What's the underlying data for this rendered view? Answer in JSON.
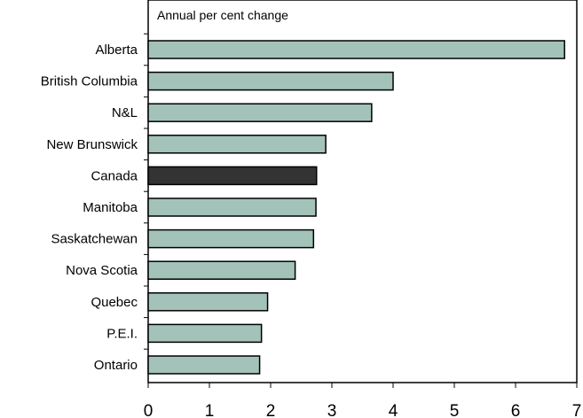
{
  "chart_data": {
    "type": "bar",
    "orientation": "horizontal",
    "title": "Annual per cent change",
    "categories": [
      "Alberta",
      "British Columbia",
      "N&L",
      "New Brunswick",
      "Canada",
      "Manitoba",
      "Saskatchewan",
      "Nova Scotia",
      "Quebec",
      "P.E.I.",
      "Ontario"
    ],
    "values": [
      6.8,
      4.0,
      3.65,
      2.9,
      2.75,
      2.74,
      2.7,
      2.4,
      1.95,
      1.85,
      1.82
    ],
    "highlight": "Canada",
    "xlim": [
      0,
      7
    ],
    "xticks": [
      "0",
      "1",
      "2",
      "3",
      "4",
      "5",
      "6",
      "7"
    ],
    "grid": false,
    "colors": {
      "bar": "#a3c2ba",
      "highlight": "#333333",
      "outline": "#000000"
    }
  }
}
